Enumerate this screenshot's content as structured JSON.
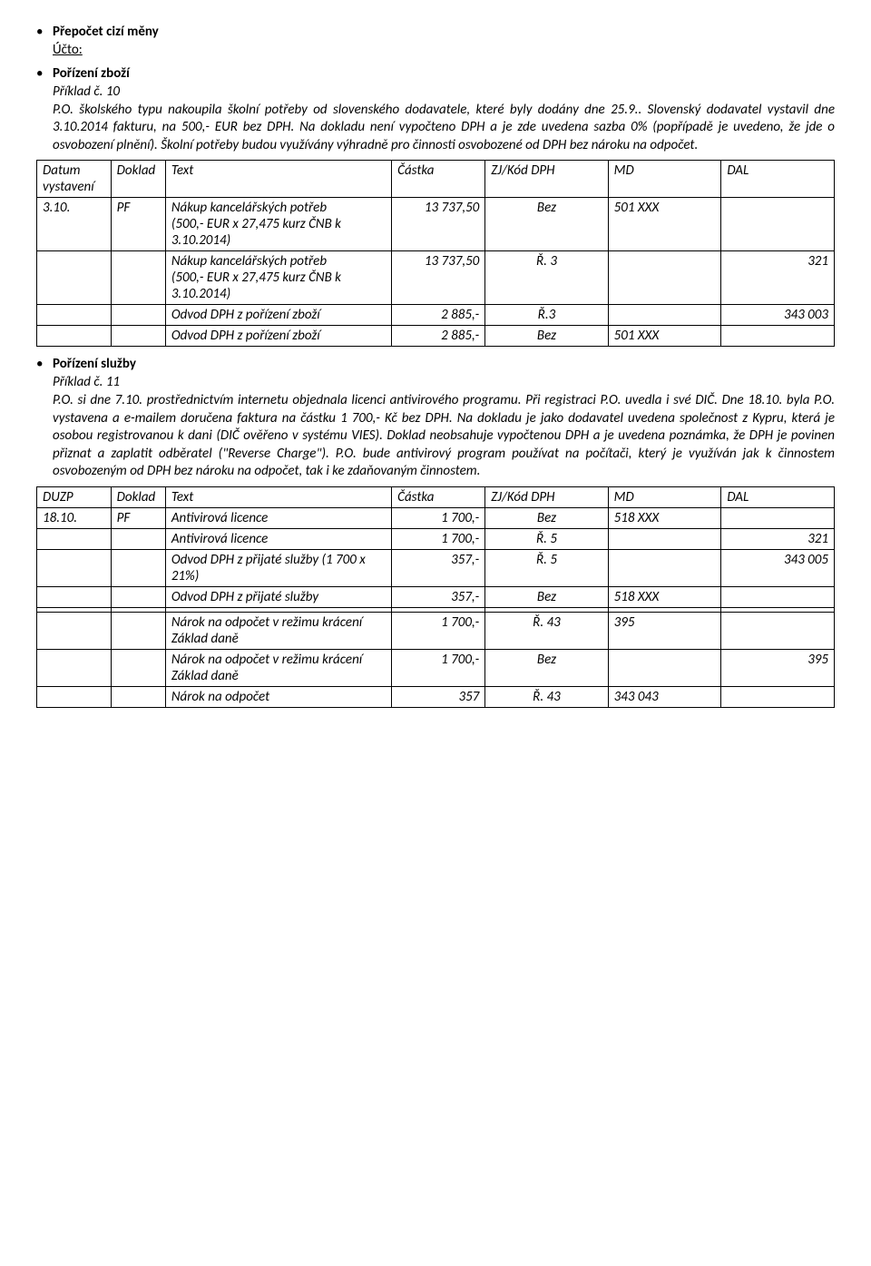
{
  "section1": {
    "bullet1": "Přepočet cizí měny",
    "ucto": "Účto:",
    "bullet2": "Pořízení zboží",
    "priklad": "Příklad č. 10",
    "para": "P.O. školského typu nakoupila školní potřeby od slovenského dodavatele, které byly dodány dne 25.9.. Slovenský dodavatel vystavil dne 3.10.2014 fakturu, na 500,- EUR bez DPH. Na dokladu není vypočteno DPH a je zde uvedena sazba 0% (popřípadě je uvedeno, že jde o osvobození plnění). Školní potřeby budou využívány výhradně pro činnosti osvobozené od DPH bez nároku na odpočet."
  },
  "table1": {
    "headers": [
      "Datum vystavení",
      "Doklad",
      "Text",
      "Částka",
      "ZJ/Kód DPH",
      "MD",
      "DAL"
    ],
    "rows": [
      {
        "datum": "3.10.",
        "dokla": "PF",
        "text": "Nákup kancelářských potřeb\n(500,- EUR x 27,475 kurz ČNB k 3.10.2014)",
        "cast": "13 737,50",
        "zj": "Bez",
        "md": "501 XXX",
        "dal": ""
      },
      {
        "datum": "",
        "dokla": "",
        "text": "Nákup kancelářských potřeb\n(500,- EUR x 27,475 kurz ČNB k 3.10.2014)",
        "cast": "13 737,50",
        "zj": "Ř. 3",
        "md": "",
        "dal": "321"
      },
      {
        "datum": "",
        "dokla": "",
        "text": "Odvod DPH z pořízení zboží",
        "cast": "2 885,-",
        "zj": "Ř.3",
        "md": "",
        "dal": "343 003"
      },
      {
        "datum": "",
        "dokla": "",
        "text": "Odvod DPH z pořízení zboží",
        "cast": "2 885,-",
        "zj": "Bez",
        "md": "501 XXX",
        "dal": ""
      }
    ]
  },
  "section2": {
    "bullet": "Pořízení služby",
    "priklad": "Příklad č. 11",
    "para": "P.O. si dne 7.10. prostřednictvím internetu objednala licenci antivirového programu. Při registraci P.O. uvedla i své DIČ. Dne 18.10. byla P.O. vystavena a e-mailem doručena faktura na částku 1 700,- Kč bez DPH. Na dokladu je jako dodavatel uvedena společnost z Kypru, která je osobou registrovanou k dani (DIČ ověřeno v systému VIES). Doklad neobsahuje vypočtenou DPH a je uvedena poznámka, že DPH je povinen přiznat a zaplatit odběratel (\"Reverse Charge\"). P.O. bude antivirový program používat na počítači, který je využíván jak k činnostem osvobozeným od DPH bez nároku na odpočet, tak i ke zdaňovaným činnostem."
  },
  "table2": {
    "headers": [
      "DUZP",
      "Doklad",
      "Text",
      "Částka",
      "ZJ/Kód DPH",
      "MD",
      "DAL"
    ],
    "rows": [
      {
        "datum": "18.10.",
        "dokla": "PF",
        "text": "Antivirová licence",
        "cast": "1 700,-",
        "zj": "Bez",
        "md": "518 XXX",
        "dal": ""
      },
      {
        "datum": "",
        "dokla": "",
        "text": "Antivirová licence",
        "cast": "1 700,-",
        "zj": "Ř. 5",
        "md": "",
        "dal": "321"
      },
      {
        "datum": "",
        "dokla": "",
        "text": "Odvod DPH z přijaté služby (1 700 x 21%)",
        "cast": "357,-",
        "zj": "Ř. 5",
        "md": "",
        "dal": "343 005"
      },
      {
        "datum": "",
        "dokla": "",
        "text": "Odvod DPH z přijaté služby",
        "cast": "357,-",
        "zj": "Bez",
        "md": "518 XXX",
        "dal": ""
      },
      {
        "datum": "",
        "dokla": "",
        "text": "",
        "cast": "",
        "zj": "",
        "md": "",
        "dal": ""
      },
      {
        "datum": "",
        "dokla": "",
        "text": "Nárok na odpočet v režimu krácení Základ daně",
        "cast": "1 700,-",
        "zj": "Ř. 43",
        "md": "395",
        "dal": ""
      },
      {
        "datum": "",
        "dokla": "",
        "text": "Nárok na odpočet v režimu krácení Základ daně",
        "cast": "1 700,-",
        "zj": "Bez",
        "md": "",
        "dal": "395"
      },
      {
        "datum": "",
        "dokla": "",
        "text": "Nárok na odpočet",
        "cast": "357",
        "zj": "Ř. 43",
        "md": "343 043",
        "dal": ""
      }
    ]
  }
}
